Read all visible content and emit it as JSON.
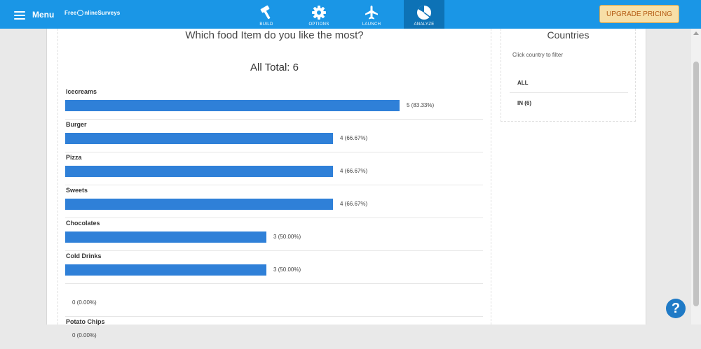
{
  "topbar": {
    "menu_label": "Menu",
    "logo": {
      "part1": "Free",
      "part2": "nline",
      "part3": "Surveys"
    },
    "tabs": [
      {
        "label": "BUILD",
        "icon": "hammer-icon",
        "active": false
      },
      {
        "label": "OPTIONS",
        "icon": "gear-icon",
        "active": false
      },
      {
        "label": "LAUNCH",
        "icon": "airplane-icon",
        "active": false
      },
      {
        "label": "ANALYZE",
        "icon": "pie-chart-icon",
        "active": true
      }
    ],
    "upgrade_label": "UPGRADE PRICING"
  },
  "results": {
    "question": "Which food Item do you like the most?",
    "total_text": "All Total: 6",
    "answers": [
      {
        "label": "Icecreams",
        "count": 5,
        "percent": 83.33,
        "value_text": "5 (83.33%)"
      },
      {
        "label": "Burger",
        "count": 4,
        "percent": 66.67,
        "value_text": "4 (66.67%)"
      },
      {
        "label": "Pizza",
        "count": 4,
        "percent": 66.67,
        "value_text": "4 (66.67%)"
      },
      {
        "label": "Sweets",
        "count": 4,
        "percent": 66.67,
        "value_text": "4 (66.67%)"
      },
      {
        "label": "Chocolates",
        "count": 3,
        "percent": 50.0,
        "value_text": "3 (50.00%)"
      },
      {
        "label": "Cold Drinks",
        "count": 3,
        "percent": 50.0,
        "value_text": "3 (50.00%)"
      },
      {
        "label": "",
        "count": 0,
        "percent": 0,
        "value_text": "0 (0.00%)"
      },
      {
        "label": "Potato Chips",
        "count": 0,
        "percent": 0,
        "value_text": "0 (0.00%)"
      }
    ]
  },
  "countries": {
    "title": "Countries",
    "hint": "Click country to filter",
    "items": [
      {
        "label": "ALL"
      },
      {
        "label": "IN (6)"
      }
    ]
  },
  "colors": {
    "topbar": "#1a96e6",
    "active_tab": "#0d72b6",
    "bar": "#2f80d8",
    "upgrade_bg": "#f7dfa7",
    "upgrade_text": "#b35a13"
  }
}
